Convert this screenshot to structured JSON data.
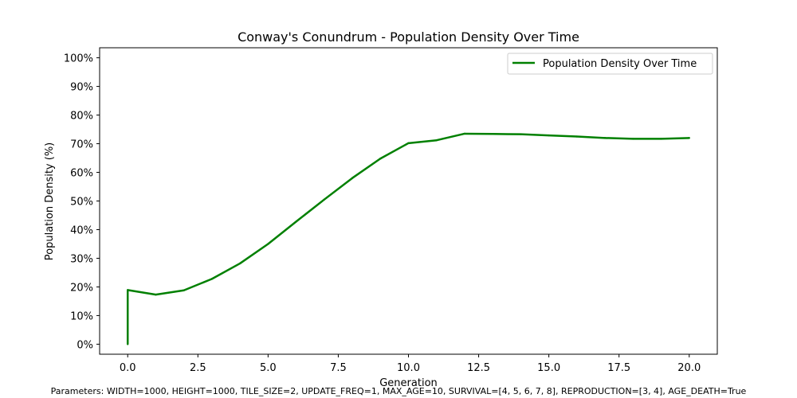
{
  "chart_data": {
    "type": "line",
    "title": "Conway's Conundrum - Population Density Over Time",
    "xlabel": "Generation",
    "ylabel": "Population Density (%)",
    "xlim": [
      -1,
      21
    ],
    "ylim": [
      -3.5,
      103.5
    ],
    "x_ticks": [
      0.0,
      2.5,
      5.0,
      7.5,
      10.0,
      12.5,
      15.0,
      17.5,
      20.0
    ],
    "x_tick_labels": [
      "0.0",
      "2.5",
      "5.0",
      "7.5",
      "10.0",
      "12.5",
      "15.0",
      "17.5",
      "20.0"
    ],
    "y_ticks": [
      0,
      10,
      20,
      30,
      40,
      50,
      60,
      70,
      80,
      90,
      100
    ],
    "y_tick_labels": [
      "0%",
      "10%",
      "20%",
      "30%",
      "40%",
      "50%",
      "60%",
      "70%",
      "80%",
      "90%",
      "100%"
    ],
    "grid": false,
    "legend_position": "top-right",
    "series": [
      {
        "name": "Population Density Over Time",
        "color": "#008000",
        "x": [
          0,
          0,
          1,
          2,
          3,
          4,
          5,
          6,
          7,
          8,
          9,
          10,
          11,
          12,
          13,
          14,
          15,
          16,
          17,
          18,
          19,
          20
        ],
        "y": [
          0,
          18.9,
          17.3,
          18.8,
          22.8,
          28.2,
          35.0,
          42.8,
          50.5,
          58.0,
          64.8,
          70.2,
          71.2,
          73.5,
          73.4,
          73.3,
          72.9,
          72.5,
          72.0,
          71.7,
          71.7,
          72.0
        ]
      }
    ]
  },
  "footer_text": "Parameters: WIDTH=1000, HEIGHT=1000, TILE_SIZE=2, UPDATE_FREQ=1, MAX_AGE=10, SURVIVAL=[4, 5, 6, 7, 8], REPRODUCTION=[3, 4], AGE_DEATH=True"
}
